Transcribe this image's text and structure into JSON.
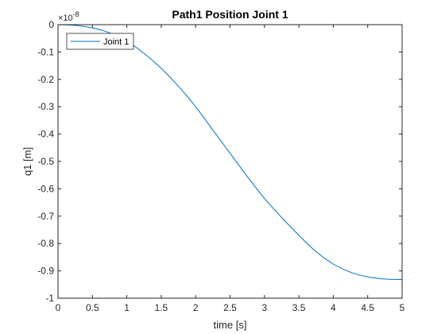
{
  "chart_data": {
    "type": "line",
    "title": "Path1 Position  Joint 1",
    "xlabel": "time [s]",
    "ylabel": "q1 [m]",
    "y_exponent": {
      "base": "×10",
      "power": "-8"
    },
    "xlim": [
      0,
      5
    ],
    "ylim": [
      -1,
      0
    ],
    "xticks": [
      0,
      0.5,
      1,
      1.5,
      2,
      2.5,
      3,
      3.5,
      4,
      4.5,
      5
    ],
    "xtick_labels": [
      "0",
      "0.5",
      "1",
      "1.5",
      "2",
      "2.5",
      "3",
      "3.5",
      "4",
      "4.5",
      "5"
    ],
    "yticks": [
      0,
      -0.1,
      -0.2,
      -0.3,
      -0.4,
      -0.5,
      -0.6,
      -0.7,
      -0.8,
      -0.9,
      -1
    ],
    "ytick_labels": [
      "0",
      "-0.1",
      "-0.2",
      "-0.3",
      "-0.4",
      "-0.5",
      "-0.6",
      "-0.7",
      "-0.8",
      "-0.9",
      "-1"
    ],
    "grid": false,
    "legend_position": "top-left",
    "series": [
      {
        "name": "Joint 1",
        "color": "#0072BD",
        "x": [
          0,
          0.25,
          0.5,
          0.75,
          1.0,
          1.25,
          1.5,
          1.75,
          2.0,
          2.25,
          2.5,
          2.75,
          3.0,
          3.25,
          3.5,
          3.75,
          4.0,
          4.25,
          4.5,
          4.75,
          5.0
        ],
        "y": [
          0,
          -0.0025,
          -0.012,
          -0.03,
          -0.06,
          -0.105,
          -0.16,
          -0.225,
          -0.3,
          -0.385,
          -0.47,
          -0.555,
          -0.635,
          -0.705,
          -0.77,
          -0.83,
          -0.875,
          -0.905,
          -0.922,
          -0.93,
          -0.932
        ]
      }
    ]
  }
}
